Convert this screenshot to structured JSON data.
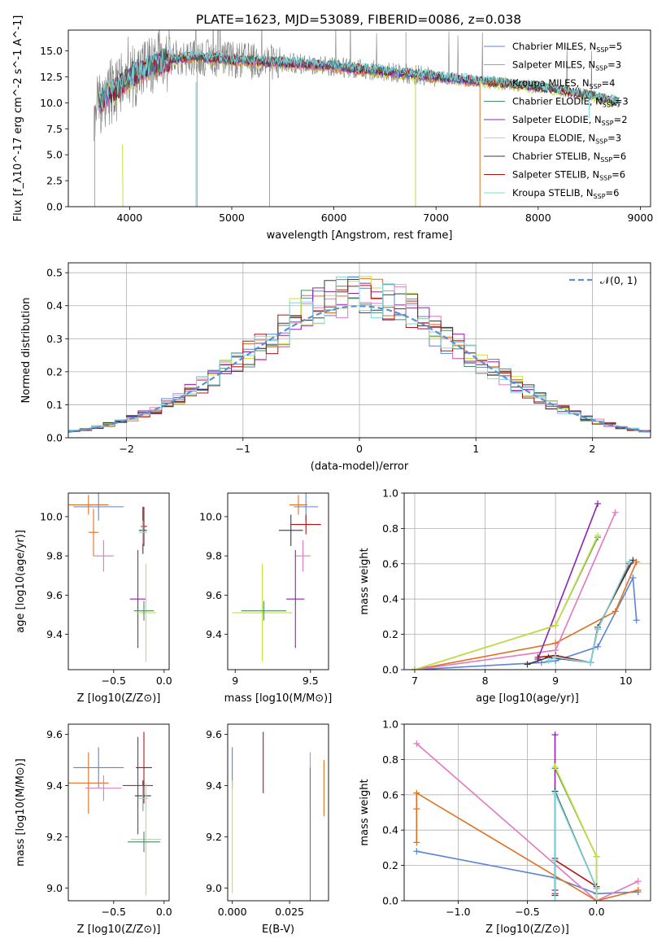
{
  "title": "PLATE=1623, MJD=53089, FIBERID=0086, z=0.038",
  "colors": {
    "chabrier_miles": "#5b84d6",
    "salpeter_miles": "#e377c2",
    "kroupa_miles": "#e0701e",
    "chabrier_elodie": "#4a8a6a",
    "salpeter_elodie": "#8f22b0",
    "kroupa_elodie": "#c8e03c",
    "chabrier_stelib": "#3a3a3a",
    "salpeter_stelib": "#b01515",
    "kroupa_stelib": "#7ad8e0",
    "data_gray": "#808080",
    "normal_dashed": "#5b8fd6"
  },
  "chart_data": [
    {
      "id": "spectrum",
      "type": "line",
      "xlabel": "wavelength [Angstrom, rest frame]",
      "ylabel": "Flux [f_λ10^-17 erg cm^-2 s^-1 A^-1]",
      "xlim": [
        3400,
        9100
      ],
      "ylim": [
        0,
        17
      ],
      "xticks": [
        4000,
        5000,
        6000,
        7000,
        8000,
        9000
      ],
      "yticks": [
        0.0,
        2.5,
        5.0,
        7.5,
        10.0,
        12.5,
        15.0
      ],
      "legend_position": "top-right",
      "legend": [
        {
          "name": "Chabrier MILES, N_SSP=5",
          "color_key": "chabrier_miles"
        },
        {
          "name": "Salpeter MILES, N_SSP=3",
          "color_key": "salpeter_miles"
        },
        {
          "name": "Kroupa MILES, N_SSP=4",
          "color_key": "kroupa_miles"
        },
        {
          "name": "Chabrier ELODIE, N_SSP=3",
          "color_key": "chabrier_elodie"
        },
        {
          "name": "Salpeter ELODIE, N_SSP=2",
          "color_key": "salpeter_elodie"
        },
        {
          "name": "Kroupa ELODIE, N_SSP=3",
          "color_key": "kroupa_elodie"
        },
        {
          "name": "Chabrier STELIB, N_SSP=6",
          "color_key": "chabrier_stelib"
        },
        {
          "name": "Salpeter STELIB, N_SSP=6",
          "color_key": "salpeter_stelib"
        },
        {
          "name": "Kroupa STELIB, N_SSP=6",
          "color_key": "kroupa_stelib"
        }
      ],
      "continuum": {
        "x": [
          3650,
          3700,
          3800,
          3900,
          4000,
          4100,
          4200,
          4300,
          4400,
          4500,
          4600,
          4700,
          4800,
          5000,
          5200,
          5400,
          5600,
          5800,
          6000,
          6200,
          6400,
          6600,
          6800,
          7000,
          7200,
          7400,
          7600,
          7800,
          8000,
          8200,
          8400,
          8600,
          8800
        ],
        "y": [
          9.5,
          10.0,
          11.0,
          11.5,
          12.5,
          13.0,
          13.5,
          13.8,
          14.2,
          14.3,
          14.4,
          14.4,
          14.3,
          14.1,
          14.0,
          13.9,
          13.8,
          13.7,
          13.5,
          13.3,
          13.1,
          12.9,
          12.7,
          12.5,
          12.3,
          12.1,
          11.9,
          11.7,
          11.5,
          11.2,
          10.9,
          10.5,
          10.0
        ]
      }
    },
    {
      "id": "residuals",
      "type": "histogram",
      "xlabel": "(data-model)/error",
      "ylabel": "Normed distribution",
      "xlim": [
        -2.5,
        2.5
      ],
      "ylim": [
        0,
        0.53
      ],
      "xticks": [
        -2,
        -1,
        0,
        1,
        2
      ],
      "xtick_labels": [
        "−2",
        "−1",
        "0",
        "1",
        "2"
      ],
      "yticks": [
        0.0,
        0.1,
        0.2,
        0.3,
        0.4,
        0.5
      ],
      "legend_position": "top-right",
      "legend_label": "𝒩(0, 1)",
      "bin_width": 0.1,
      "grid": true
    },
    {
      "id": "age_vs_Z",
      "type": "scatter-errorbar",
      "xlabel": "Z [log10(Z/Z⊙)]",
      "ylabel": "age [log10(age/yr)]",
      "xlim": [
        -0.95,
        0.05
      ],
      "ylim": [
        9.22,
        10.12
      ],
      "xticks": [
        -0.5,
        0.0
      ],
      "xtick_labels": [
        "−0.5",
        "0.0"
      ],
      "yticks": [
        9.4,
        9.6,
        9.8,
        10.0
      ],
      "points": [
        {
          "series": "chabrier_miles",
          "x": -0.65,
          "y": 10.05,
          "xerr": 0.25,
          "yerr": 0.07
        },
        {
          "series": "kroupa_miles",
          "x": -0.75,
          "y": 10.06,
          "xerr": 0.2,
          "yerr": 0.05
        },
        {
          "series": "salpeter_miles",
          "x": -0.6,
          "y": 9.8,
          "xerr": 0.1,
          "yerr": 0.08
        },
        {
          "series": "kroupa_miles",
          "x": -0.7,
          "y": 9.92,
          "xerr": 0.05,
          "yerr": 0.12
        },
        {
          "series": "salpeter_elodie",
          "x": -0.26,
          "y": 9.58,
          "xerr": 0.08,
          "yerr": 0.25
        },
        {
          "series": "kroupa_elodie",
          "x": -0.18,
          "y": 9.51,
          "xerr": 0.1,
          "yerr": 0.25
        },
        {
          "series": "chabrier_elodie",
          "x": -0.2,
          "y": 9.52,
          "xerr": 0.1,
          "yerr": 0.05
        },
        {
          "series": "chabrier_stelib",
          "x": -0.21,
          "y": 9.93,
          "xerr": 0.04,
          "yerr": 0.12
        },
        {
          "series": "salpeter_stelib",
          "x": -0.2,
          "y": 9.95,
          "xerr": 0.03,
          "yerr": 0.1
        },
        {
          "series": "kroupa_stelib",
          "x": -0.21,
          "y": 9.92,
          "xerr": 0.04,
          "yerr": 0.06
        }
      ]
    },
    {
      "id": "age_vs_mass",
      "type": "scatter-errorbar",
      "xlabel": "mass [log10(M/M⊙)]",
      "ylabel": "",
      "xlim": [
        8.95,
        9.62
      ],
      "ylim": [
        9.22,
        10.12
      ],
      "xticks": [
        9.0,
        9.5
      ],
      "yticks": [
        9.4,
        9.6,
        9.8,
        10.0
      ],
      "points": [
        {
          "series": "chabrier_miles",
          "x": 9.47,
          "y": 10.05,
          "xerr": 0.08,
          "yerr": 0.07
        },
        {
          "series": "kroupa_miles",
          "x": 9.42,
          "y": 10.06,
          "xerr": 0.06,
          "yerr": 0.05
        },
        {
          "series": "salpeter_miles",
          "x": 9.45,
          "y": 9.8,
          "xerr": 0.05,
          "yerr": 0.08
        },
        {
          "series": "salpeter_stelib",
          "x": 9.47,
          "y": 9.96,
          "xerr": 0.1,
          "yerr": 0.05
        },
        {
          "series": "chabrier_stelib",
          "x": 9.37,
          "y": 9.93,
          "xerr": 0.08,
          "yerr": 0.08
        },
        {
          "series": "salpeter_elodie",
          "x": 9.4,
          "y": 9.58,
          "xerr": 0.06,
          "yerr": 0.25
        },
        {
          "series": "kroupa_elodie",
          "x": 9.18,
          "y": 9.51,
          "xerr": 0.2,
          "yerr": 0.25
        },
        {
          "series": "chabrier_elodie",
          "x": 9.19,
          "y": 9.52,
          "xerr": 0.15,
          "yerr": 0.05
        }
      ]
    },
    {
      "id": "weight_vs_age",
      "type": "line",
      "xlabel": "age [log10(age/yr)]",
      "ylabel": "mass weight",
      "xlim": [
        6.85,
        10.35
      ],
      "ylim": [
        0,
        1
      ],
      "xticks": [
        7,
        8,
        9,
        10
      ],
      "yticks": [
        0.0,
        0.2,
        0.4,
        0.6,
        0.8,
        1.0
      ],
      "grid": true,
      "series": [
        {
          "key": "chabrier_miles",
          "x": [
            7.0,
            8.8,
            9.0,
            9.6,
            10.1,
            10.15
          ],
          "y": [
            0.0,
            0.04,
            0.05,
            0.13,
            0.52,
            0.28
          ]
        },
        {
          "key": "kroupa_miles",
          "x": [
            7.0,
            9.0,
            9.85,
            10.15
          ],
          "y": [
            0.0,
            0.15,
            0.33,
            0.61
          ]
        },
        {
          "key": "salpeter_miles",
          "x": [
            7.0,
            9.0,
            9.85
          ],
          "y": [
            0.0,
            0.11,
            0.89
          ]
        },
        {
          "key": "chabrier_elodie",
          "x": [
            7.0,
            9.0,
            9.6
          ],
          "y": [
            0.0,
            0.25,
            0.75
          ]
        },
        {
          "key": "salpeter_elodie",
          "x": [
            8.75,
            9.6
          ],
          "y": [
            0.06,
            0.94
          ]
        },
        {
          "key": "kroupa_elodie",
          "x": [
            7.0,
            9.0,
            9.6
          ],
          "y": [
            0.0,
            0.25,
            0.76
          ]
        },
        {
          "key": "chabrier_stelib",
          "x": [
            8.6,
            8.9,
            9.5,
            9.6,
            10.1
          ],
          "y": [
            0.03,
            0.07,
            0.04,
            0.24,
            0.62
          ]
        },
        {
          "key": "salpeter_stelib",
          "x": [
            8.75,
            9.0,
            9.5,
            9.6,
            10.05
          ],
          "y": [
            0.07,
            0.08,
            0.04,
            0.23,
            0.6
          ]
        },
        {
          "key": "kroupa_stelib",
          "x": [
            8.9,
            9.0,
            9.5,
            9.6,
            10.05
          ],
          "y": [
            0.05,
            0.07,
            0.04,
            0.23,
            0.61
          ]
        }
      ]
    },
    {
      "id": "mass_vs_Z",
      "type": "scatter-errorbar",
      "xlabel": "Z [log10(Z/Z⊙)]",
      "ylabel": "mass [log10(M/M⊙)]",
      "xlim": [
        -0.95,
        0.05
      ],
      "ylim": [
        8.95,
        9.64
      ],
      "xticks": [
        -0.5,
        0.0
      ],
      "xtick_labels": [
        "−0.5",
        "0.0"
      ],
      "yticks": [
        9.0,
        9.2,
        9.4,
        9.6
      ],
      "points": [
        {
          "series": "chabrier_miles",
          "x": -0.65,
          "y": 9.47,
          "xerr": 0.25,
          "yerr": 0.08
        },
        {
          "series": "kroupa_miles",
          "x": -0.75,
          "y": 9.41,
          "xerr": 0.2,
          "yerr": 0.12
        },
        {
          "series": "salpeter_miles",
          "x": -0.6,
          "y": 9.39,
          "xerr": 0.18,
          "yerr": 0.05
        },
        {
          "series": "salpeter_elodie",
          "x": -0.26,
          "y": 9.4,
          "xerr": 0.15,
          "yerr": 0.19
        },
        {
          "series": "salpeter_stelib",
          "x": -0.2,
          "y": 9.47,
          "xerr": 0.08,
          "yerr": 0.14
        },
        {
          "series": "chabrier_stelib",
          "x": -0.21,
          "y": 9.36,
          "xerr": 0.08,
          "yerr": 0.06
        },
        {
          "series": "kroupa_stelib",
          "x": -0.21,
          "y": 9.35,
          "xerr": 0.05,
          "yerr": 0.05
        },
        {
          "series": "kroupa_elodie",
          "x": -0.18,
          "y": 9.19,
          "xerr": 0.15,
          "yerr": 0.22
        },
        {
          "series": "chabrier_elodie",
          "x": -0.2,
          "y": 9.18,
          "xerr": 0.16,
          "yerr": 0.04
        }
      ]
    },
    {
      "id": "mass_vs_ebv",
      "type": "scatter-errorbar",
      "xlabel": "E(B-V)",
      "ylabel": "",
      "xlim": [
        -0.002,
        0.042
      ],
      "ylim": [
        8.95,
        9.64
      ],
      "xticks": [
        0.0,
        0.025
      ],
      "xtick_labels": [
        "0.000",
        "0.025"
      ],
      "yticks": [
        9.0,
        9.2,
        9.4,
        9.6
      ],
      "points": [
        {
          "series": "chabrier_miles",
          "x": 0.0,
          "y": 9.47,
          "xerr": 0.0,
          "yerr": 0.08
        },
        {
          "series": "kroupa_elodie",
          "x": 0.0,
          "y": 9.2,
          "xerr": 0.0,
          "yerr": 0.22
        },
        {
          "series": "salpeter_stelib",
          "x": 0.0135,
          "y": 9.49,
          "xerr": 0.0,
          "yerr": 0.12
        },
        {
          "series": "salpeter_miles",
          "x": 0.034,
          "y": 9.43,
          "xerr": 0.0,
          "yerr": 0.1
        },
        {
          "series": "chabrier_elodie",
          "x": 0.034,
          "y": 9.19,
          "xerr": 0.0,
          "yerr": 0.28
        },
        {
          "series": "kroupa_miles",
          "x": 0.04,
          "y": 9.39,
          "xerr": 0.0,
          "yerr": 0.11
        }
      ]
    },
    {
      "id": "weight_vs_Z",
      "type": "line",
      "xlabel": "Z [log10(Z/Z⊙)]",
      "ylabel": "mass weight",
      "xlim": [
        -1.39,
        0.39
      ],
      "ylim": [
        0,
        1
      ],
      "xticks": [
        -1.0,
        -0.5,
        0.0
      ],
      "xtick_labels": [
        "−1.0",
        "−0.5",
        "0.0"
      ],
      "yticks": [
        0.0,
        0.2,
        0.4,
        0.6,
        0.8,
        1.0
      ],
      "grid": true,
      "series": [
        {
          "key": "chabrier_miles",
          "x": [
            -1.3,
            -0.3,
            0.0,
            0.3
          ],
          "y": [
            0.28,
            0.13,
            0.04,
            0.05
          ]
        },
        {
          "key": "kroupa_miles",
          "x": [
            -1.3,
            -1.3,
            -1.3,
            0.0,
            0.3
          ],
          "y": [
            0.33,
            0.52,
            0.61,
            0.0,
            0.06
          ]
        },
        {
          "key": "salpeter_miles",
          "x": [
            -1.3,
            0.0,
            0.3
          ],
          "y": [
            0.89,
            0.0,
            0.11
          ]
        },
        {
          "key": "chabrier_elodie",
          "x": [
            -0.3,
            0.0,
            0.0
          ],
          "y": [
            0.75,
            0.25,
            0.0
          ]
        },
        {
          "key": "salpeter_elodie",
          "x": [
            -0.3,
            -0.3
          ],
          "y": [
            0.06,
            0.94
          ]
        },
        {
          "key": "kroupa_elodie",
          "x": [
            -0.3,
            0.0,
            0.0
          ],
          "y": [
            0.76,
            0.25,
            0.0
          ]
        },
        {
          "key": "chabrier_stelib",
          "x": [
            -0.3,
            -0.3,
            -0.3,
            0.0
          ],
          "y": [
            0.03,
            0.24,
            0.62,
            0.07
          ]
        },
        {
          "key": "salpeter_stelib",
          "x": [
            -0.3,
            -0.3,
            0.0
          ],
          "y": [
            0.04,
            0.23,
            0.08
          ]
        },
        {
          "key": "kroupa_stelib",
          "x": [
            -0.3,
            -0.3,
            -0.3,
            0.0
          ],
          "y": [
            0.0,
            0.23,
            0.61,
            0.07
          ]
        }
      ]
    }
  ]
}
